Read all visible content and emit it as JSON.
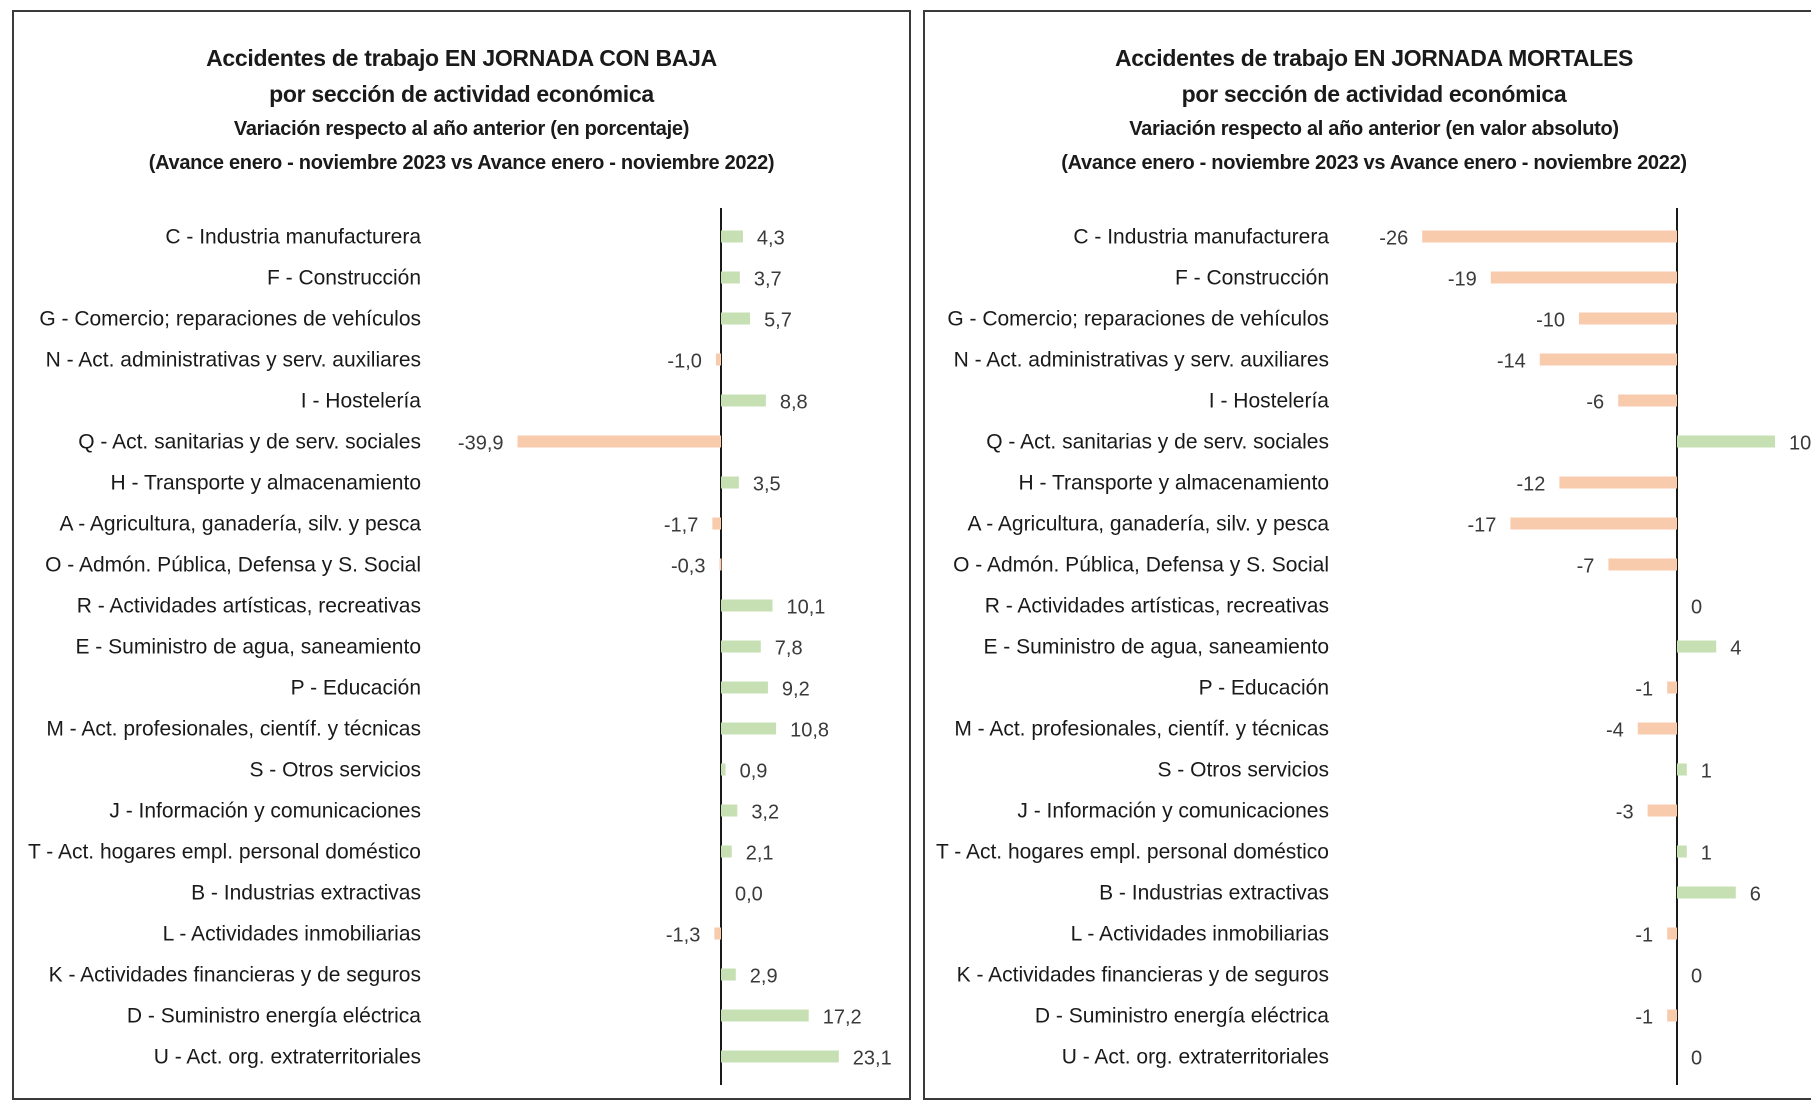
{
  "colors": {
    "positive": "#c6e0b4",
    "negative": "#f8cbad",
    "axis": "#1a1a1a",
    "border": "#3a3a3a"
  },
  "chart_data": [
    {
      "type": "bar",
      "orientation": "horizontal",
      "title": "Accidentes de trabajo EN JORNADA CON BAJA",
      "title_line2": "por sección de actividad económica",
      "subtitle": "Variación respecto al año anterior (en porcentaje)",
      "subtitle_line2": "(Avance enero - noviembre 2023 vs Avance enero - noviembre 2022)",
      "categories": [
        "C - Industria manufacturera",
        "F - Construcción",
        "G - Comercio; reparaciones de vehículos",
        "N - Act. administrativas y serv. auxiliares",
        "I - Hostelería",
        "Q - Act. sanitarias y de serv. sociales",
        "H - Transporte y almacenamiento",
        "A - Agricultura, ganadería, silv. y pesca",
        "O - Admón. Pública, Defensa y S. Social",
        "R - Actividades artísticas, recreativas",
        "E - Suministro de agua, saneamiento",
        "P - Educación",
        "M - Act. profesionales, científ. y técnicas",
        "S - Otros servicios",
        "J - Información y comunicaciones",
        "T - Act. hogares empl. personal doméstico",
        "B - Industrias extractivas",
        "L - Actividades inmobiliarias",
        "K - Actividades financieras y de seguros",
        "D - Suministro energía eléctrica",
        "U - Act. org. extraterritoriales"
      ],
      "values": [
        4.3,
        3.7,
        5.7,
        -1.0,
        8.8,
        -39.9,
        3.5,
        -1.7,
        -0.3,
        10.1,
        7.8,
        9.2,
        10.8,
        0.9,
        3.2,
        2.1,
        0.0,
        -1.3,
        2.9,
        17.2,
        23.1
      ],
      "value_labels": [
        "4,3",
        "3,7",
        "5,7",
        "-1,0",
        "8,8",
        "-39,9",
        "3,5",
        "-1,7",
        "-0,3",
        "10,1",
        "7,8",
        "9,2",
        "10,8",
        "0,9",
        "3,2",
        "2,1",
        "0,0",
        "-1,3",
        "2,9",
        "17,2",
        "23,1"
      ],
      "xlim": [
        -40,
        23.1
      ],
      "legend": "none",
      "grid": false
    },
    {
      "type": "bar",
      "orientation": "horizontal",
      "title": "Accidentes de trabajo EN JORNADA MORTALES",
      "title_line2": "por sección de actividad económica",
      "subtitle": "Variación respecto al año anterior (en valor absoluto)",
      "subtitle_line2": "(Avance enero - noviembre 2023 vs Avance enero - noviembre 2022)",
      "categories": [
        "C - Industria manufacturera",
        "F - Construcción",
        "G - Comercio; reparaciones de vehículos",
        "N - Act. administrativas y serv. auxiliares",
        "I - Hostelería",
        "Q - Act. sanitarias y de serv. sociales",
        "H - Transporte y almacenamiento",
        "A - Agricultura, ganadería, silv. y pesca",
        "O - Admón. Pública, Defensa y S. Social",
        "R - Actividades artísticas, recreativas",
        "E - Suministro de agua, saneamiento",
        "P - Educación",
        "M - Act. profesionales, científ. y técnicas",
        "S - Otros servicios",
        "J - Información y comunicaciones",
        "T - Act. hogares empl. personal doméstico",
        "B - Industrias extractivas",
        "L - Actividades inmobiliarias",
        "K - Actividades financieras y de seguros",
        "D - Suministro energía eléctrica",
        "U - Act. org. extraterritoriales"
      ],
      "values": [
        -26,
        -19,
        -10,
        -14,
        -6,
        10,
        -12,
        -17,
        -7,
        0,
        4,
        -1,
        -4,
        1,
        -3,
        1,
        6,
        -1,
        0,
        -1,
        0
      ],
      "value_labels": [
        "-26",
        "-19",
        "-10",
        "-14",
        "-6",
        "10",
        "-12",
        "-17",
        "-7",
        "0",
        "4",
        "-1",
        "-4",
        "1",
        "-3",
        "1",
        "6",
        "-1",
        "0",
        "-1",
        "0"
      ],
      "xlim": [
        -26,
        10
      ],
      "legend": "none",
      "grid": false
    }
  ]
}
